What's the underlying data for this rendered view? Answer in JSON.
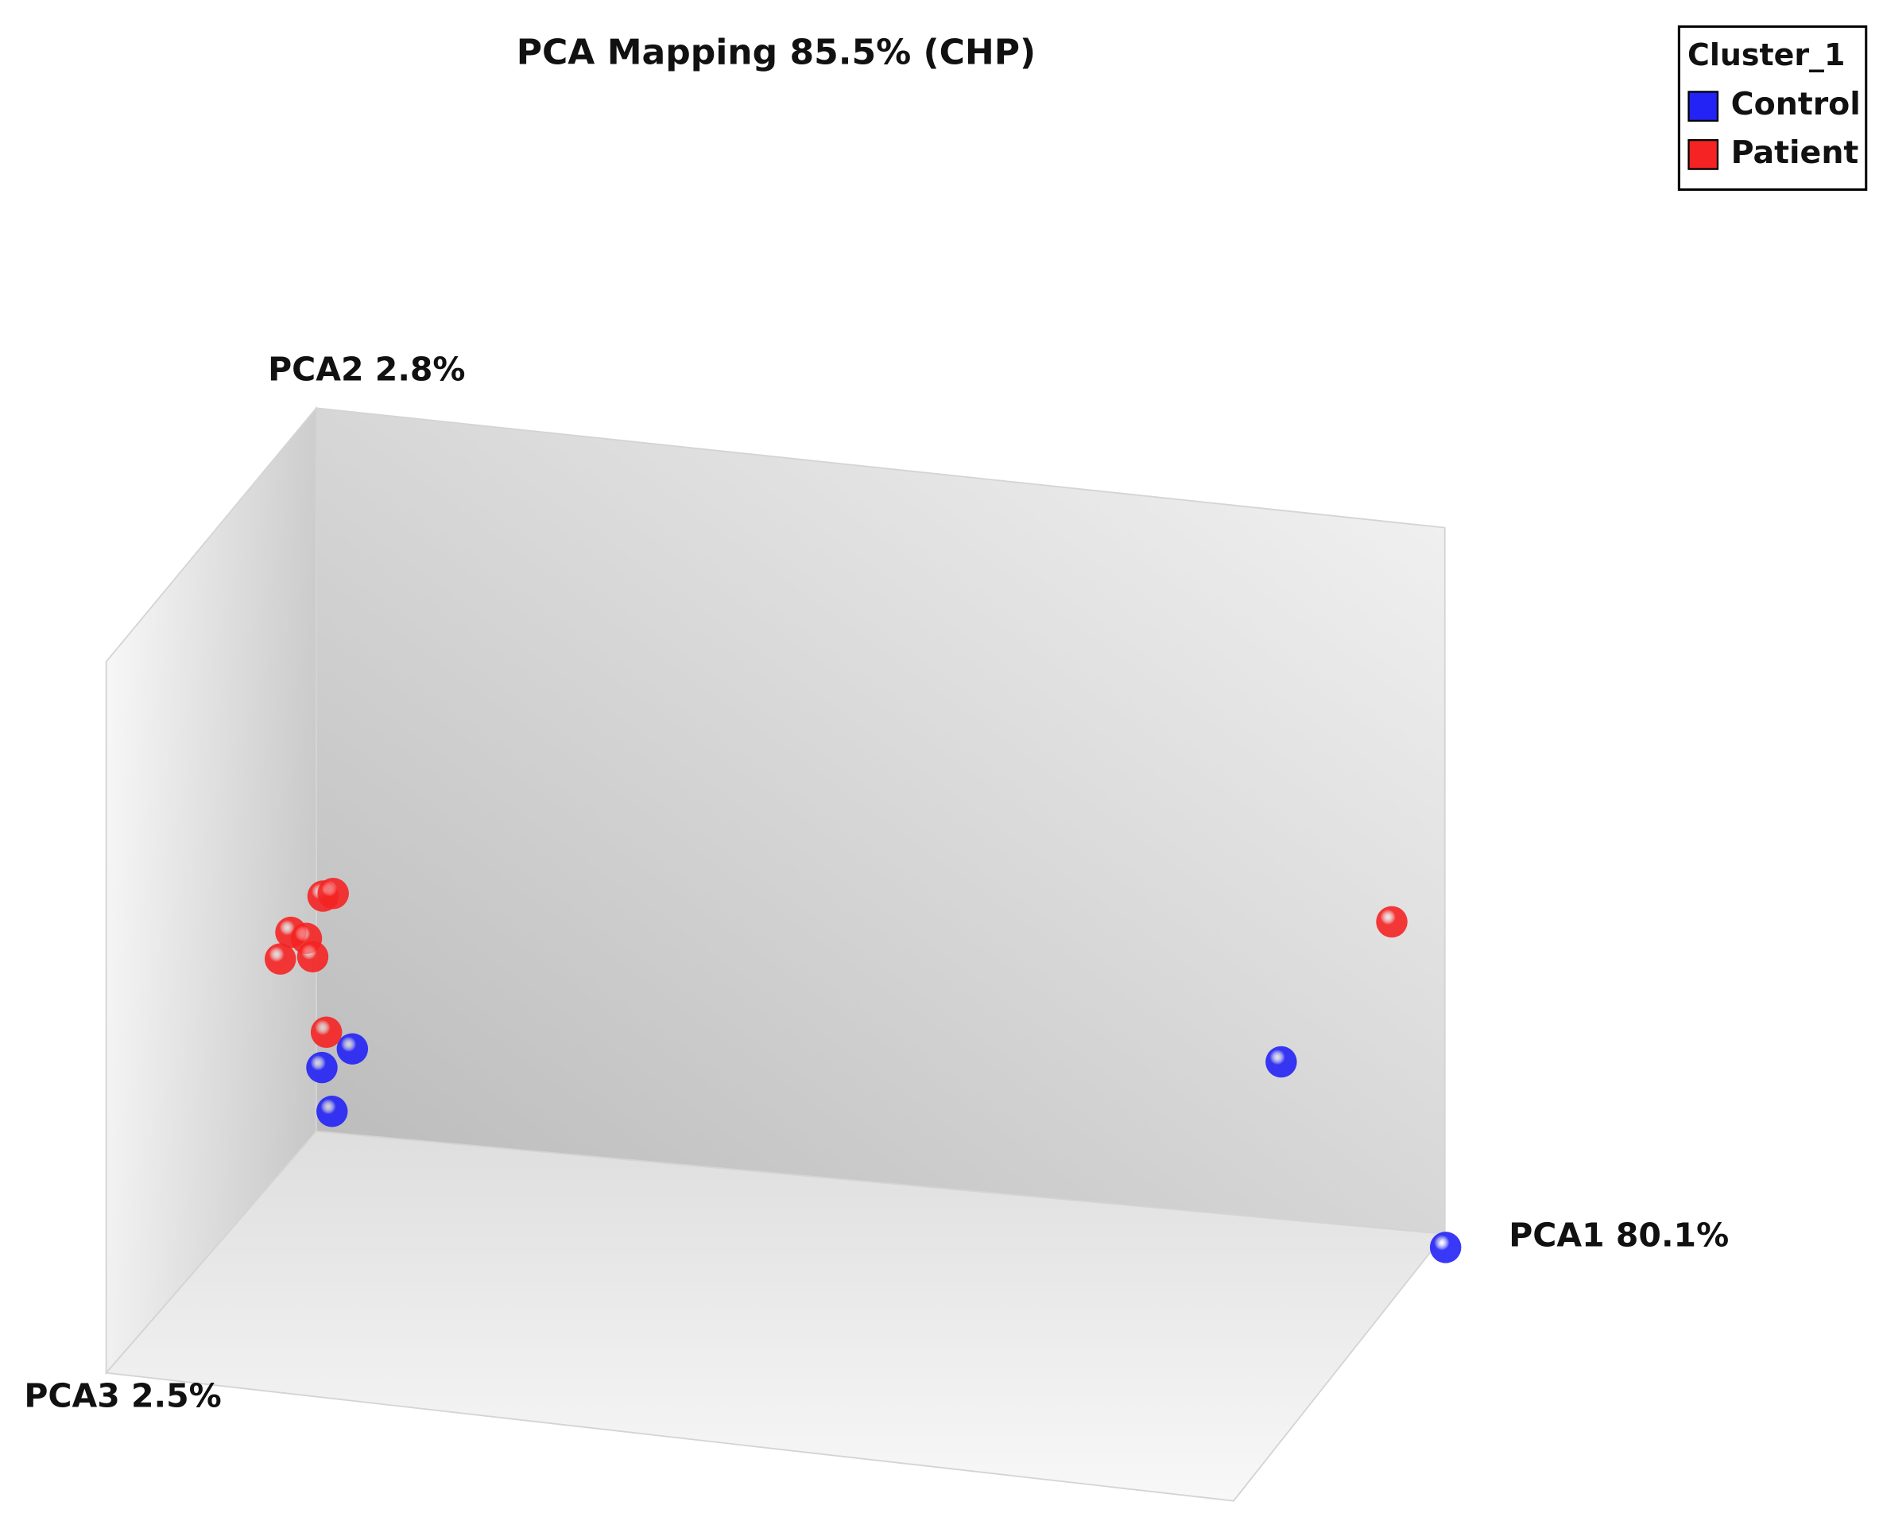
{
  "chart_data": {
    "type": "scatter3d",
    "title": "PCA Mapping 85.5% (CHP)",
    "x_label": "PCA1 80.1%",
    "y_label": "PCA2 2.8%",
    "z_label": "PCA3 2.5%",
    "legend_title": "Cluster_1",
    "legend": "top-right",
    "xlim": [
      0,
      1
    ],
    "ylim": [
      0,
      1
    ],
    "zlim": [
      0,
      1
    ],
    "series": [
      {
        "name": "Control",
        "color": "#2323f5",
        "x": [
          1.01,
          0.855,
          0.014,
          0.005,
          0.032
        ],
        "y": [
          0,
          0.22,
          0.03,
          0.09,
          0.12
        ],
        "z": [
          0.05,
          0,
          0,
          0,
          0
        ]
      },
      {
        "name": "Patient",
        "color": "#f52323",
        "x": [
          0.953,
          0.009,
          0.006,
          0.015,
          0,
          0.01,
          0,
          0.01
        ],
        "y": [
          0.43,
          0.14,
          0.33,
          0.335,
          0.32,
          0.306,
          0.3,
          0.27
        ],
        "z": [
          0,
          0,
          0,
          0,
          0.12,
          0.1,
          0.17,
          0.07
        ]
      }
    ]
  }
}
